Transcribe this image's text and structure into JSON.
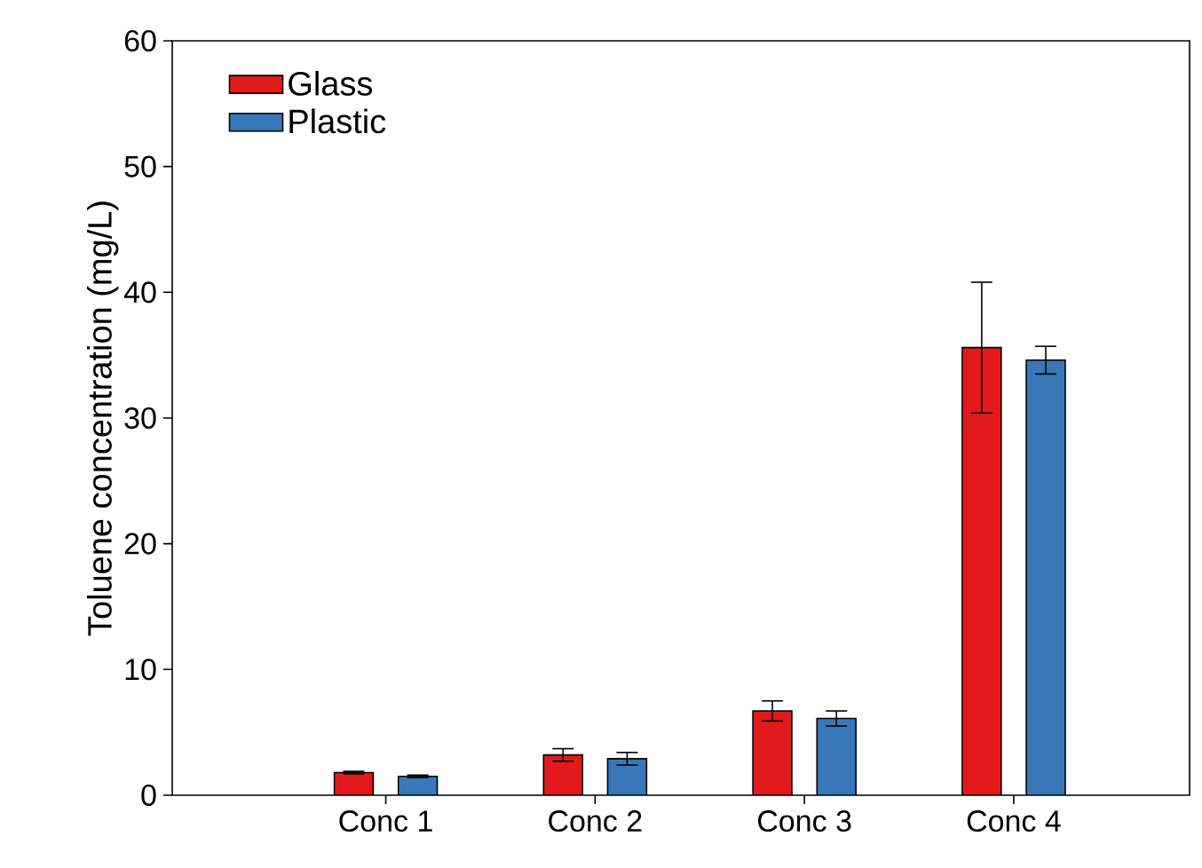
{
  "chart_data": {
    "type": "bar",
    "ylabel": "Toluene concentration (mg/L)",
    "categories": [
      "Conc 1",
      "Conc 2",
      "Conc 3",
      "Conc 4"
    ],
    "series": [
      {
        "name": "Glass",
        "color": "#e31a1c",
        "values": [
          1.8,
          3.2,
          6.7,
          35.6
        ],
        "errors": [
          0.1,
          0.5,
          0.8,
          5.2
        ]
      },
      {
        "name": "Plastic",
        "color": "#3878b8",
        "values": [
          1.5,
          2.9,
          6.1,
          34.6
        ],
        "errors": [
          0.1,
          0.5,
          0.6,
          1.1
        ]
      }
    ],
    "ylim": [
      0,
      60
    ],
    "yticks": [
      0,
      10,
      20,
      30,
      40,
      50,
      60
    ],
    "legend": "top left",
    "grid": false
  }
}
